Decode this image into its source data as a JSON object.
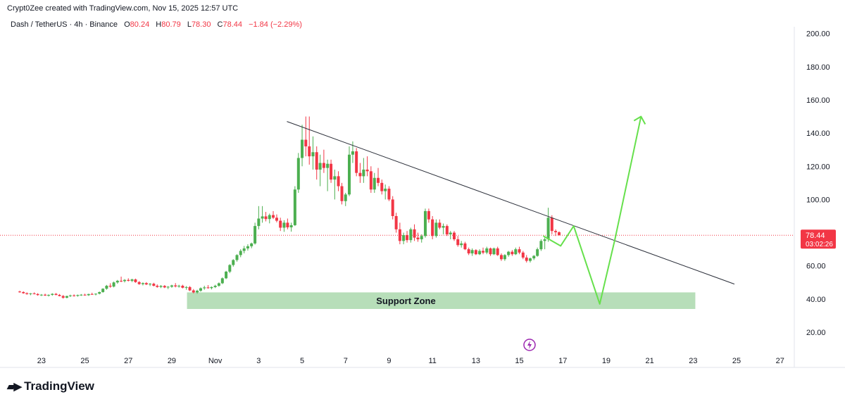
{
  "header": {
    "created_by": "Crypt0Zee created with TradingView.com, Nov 15, 2025 12:57 UTC"
  },
  "legend": {
    "symbol": "Dash / TetherUS · 4h · Binance",
    "o_label": "O",
    "o_value": "80.24",
    "h_label": "H",
    "h_value": "80.79",
    "l_label": "L",
    "l_value": "78.30",
    "c_label": "C",
    "c_value": "78.44",
    "change": "−1.84 (−2.29%)"
  },
  "price_badge": {
    "price": "78.44",
    "countdown": "03:02:26"
  },
  "brand": {
    "name": "TradingView"
  },
  "colors": {
    "up": "#4caf50",
    "down": "#f23645",
    "projection": "#66e04c",
    "zone": "#a5d6a7",
    "trendline": "#2a2e39"
  },
  "chart_data": {
    "type": "candlestick",
    "x_ticks": [
      "23",
      "25",
      "27",
      "29",
      "Nov",
      "3",
      "5",
      "7",
      "9",
      "11",
      "13",
      "15",
      "17",
      "19",
      "21",
      "23",
      "25",
      "27"
    ],
    "y_ticks": [
      "20.00",
      "40.00",
      "60.00",
      "80.00",
      "100.00",
      "120.00",
      "140.00",
      "160.00",
      "180.00",
      "200.00"
    ],
    "ylim": [
      10,
      210
    ],
    "x_range_days": [
      -9,
      27
    ],
    "last_price": 78.44,
    "support_zone": {
      "label": "Support Zone",
      "from_day": -1.3,
      "to_day": 22.1,
      "low": 34,
      "high": 44
    },
    "trendline": {
      "from": [
        3.3,
        147
      ],
      "to": [
        23.9,
        49
      ]
    },
    "projection_path": [
      [
        15.1,
        78
      ],
      [
        15.9,
        72
      ],
      [
        16.5,
        84
      ],
      [
        17.7,
        37
      ],
      [
        18.4,
        76
      ],
      [
        19.6,
        150
      ]
    ],
    "candles": [
      [
        -9.0,
        44.5,
        45.0,
        43.8,
        44.2
      ],
      [
        -8.83,
        44.2,
        44.6,
        43.2,
        43.5
      ],
      [
        -8.67,
        43.5,
        44.0,
        42.6,
        43.0
      ],
      [
        -8.5,
        43.0,
        43.6,
        42.3,
        43.4
      ],
      [
        -8.33,
        43.4,
        44.0,
        42.8,
        43.0
      ],
      [
        -8.17,
        43.0,
        43.5,
        42.0,
        42.4
      ],
      [
        -8.0,
        42.4,
        43.0,
        41.8,
        42.6
      ],
      [
        -7.83,
        42.6,
        43.2,
        41.9,
        42.1
      ],
      [
        -7.67,
        42.1,
        42.8,
        41.5,
        42.5
      ],
      [
        -7.5,
        42.5,
        43.5,
        42.0,
        43.1
      ],
      [
        -7.33,
        43.1,
        43.6,
        42.2,
        42.5
      ],
      [
        -7.17,
        42.5,
        43.0,
        41.6,
        41.8
      ],
      [
        -7.0,
        41.8,
        42.4,
        40.2,
        40.8
      ],
      [
        -6.83,
        40.8,
        42.0,
        40.4,
        41.8
      ],
      [
        -6.67,
        41.8,
        42.6,
        41.2,
        42.2
      ],
      [
        -6.5,
        42.2,
        42.8,
        41.5,
        41.9
      ],
      [
        -6.33,
        41.9,
        42.7,
        41.4,
        42.4
      ],
      [
        -6.17,
        42.4,
        43.0,
        41.9,
        42.6
      ],
      [
        -6.0,
        42.6,
        43.2,
        42.0,
        42.3
      ],
      [
        -5.83,
        42.3,
        43.2,
        41.9,
        43.0
      ],
      [
        -5.67,
        43.0,
        43.8,
        42.5,
        42.8
      ],
      [
        -5.5,
        42.8,
        43.4,
        42.2,
        43.2
      ],
      [
        -5.33,
        43.2,
        44.5,
        42.8,
        44.2
      ],
      [
        -5.17,
        44.2,
        46.5,
        43.8,
        46.2
      ],
      [
        -5.0,
        46.2,
        48.5,
        45.6,
        48.0
      ],
      [
        -4.83,
        48.0,
        49.5,
        46.8,
        47.5
      ],
      [
        -4.67,
        47.5,
        50.5,
        47.0,
        50.0
      ],
      [
        -4.5,
        50.0,
        51.5,
        49.2,
        51.0
      ],
      [
        -4.33,
        51.0,
        53.5,
        50.2,
        50.8
      ],
      [
        -4.17,
        50.8,
        52.0,
        50.0,
        51.5
      ],
      [
        -4.0,
        51.5,
        52.5,
        50.6,
        51.0
      ],
      [
        -3.83,
        51.0,
        52.2,
        50.2,
        51.8
      ],
      [
        -3.67,
        51.8,
        52.3,
        49.8,
        50.2
      ],
      [
        -3.5,
        50.2,
        50.8,
        48.6,
        49.0
      ],
      [
        -3.33,
        49.0,
        50.0,
        48.2,
        49.6
      ],
      [
        -3.17,
        49.6,
        50.2,
        48.4,
        48.8
      ],
      [
        -3.0,
        48.8,
        49.6,
        47.8,
        49.2
      ],
      [
        -2.83,
        49.2,
        49.8,
        47.6,
        48.0
      ],
      [
        -2.67,
        48.0,
        48.8,
        46.8,
        47.3
      ],
      [
        -2.5,
        47.3,
        48.4,
        46.6,
        47.9
      ],
      [
        -2.33,
        47.9,
        48.4,
        46.6,
        47.0
      ],
      [
        -2.17,
        47.0,
        47.8,
        46.0,
        47.4
      ],
      [
        -2.0,
        47.4,
        48.6,
        46.8,
        48.2
      ],
      [
        -1.83,
        48.2,
        49.6,
        47.0,
        47.6
      ],
      [
        -1.67,
        47.6,
        48.6,
        46.8,
        48.0
      ],
      [
        -1.5,
        48.0,
        48.6,
        46.4,
        46.8
      ],
      [
        -1.33,
        46.8,
        47.8,
        45.6,
        47.2
      ],
      [
        -1.17,
        47.2,
        47.8,
        44.8,
        45.2
      ],
      [
        -1.0,
        45.2,
        46.0,
        43.4,
        44.0
      ],
      [
        -0.83,
        44.0,
        45.6,
        43.2,
        45.0
      ],
      [
        -0.67,
        45.0,
        47.0,
        44.4,
        46.5
      ],
      [
        -0.5,
        46.5,
        48.0,
        45.6,
        47.0
      ],
      [
        -0.33,
        47.0,
        48.4,
        46.2,
        46.6
      ],
      [
        -0.17,
        46.6,
        47.6,
        45.8,
        47.2
      ],
      [
        0.0,
        47.2,
        48.6,
        46.6,
        48.0
      ],
      [
        0.17,
        48.0,
        50.0,
        47.4,
        49.5
      ],
      [
        0.33,
        49.5,
        53.0,
        49.0,
        52.5
      ],
      [
        0.5,
        52.5,
        57.0,
        52.0,
        56.5
      ],
      [
        0.67,
        56.5,
        61.0,
        55.6,
        60.5
      ],
      [
        0.83,
        60.5,
        64.0,
        59.5,
        63.5
      ],
      [
        1.0,
        63.5,
        67.0,
        62.5,
        66.5
      ],
      [
        1.17,
        66.5,
        70.0,
        65.2,
        69.0
      ],
      [
        1.33,
        69.0,
        72.0,
        67.5,
        70.5
      ],
      [
        1.5,
        70.5,
        73.0,
        69.2,
        71.8
      ],
      [
        1.67,
        71.8,
        74.0,
        70.6,
        73.5
      ],
      [
        1.83,
        73.5,
        86.0,
        72.8,
        84.0
      ],
      [
        2.0,
        84.0,
        96.0,
        82.0,
        88.5
      ],
      [
        2.17,
        88.5,
        96.0,
        86.0,
        89.8
      ],
      [
        2.33,
        89.8,
        92.5,
        86.8,
        88.2
      ],
      [
        2.5,
        88.2,
        91.5,
        85.6,
        90.6
      ],
      [
        2.67,
        90.6,
        93.0,
        88.2,
        89.0
      ],
      [
        2.83,
        89.0,
        91.0,
        86.2,
        87.2
      ],
      [
        3.0,
        87.2,
        89.0,
        81.0,
        83.0
      ],
      [
        3.17,
        83.0,
        87.5,
        80.5,
        86.0
      ],
      [
        3.33,
        86.0,
        88.5,
        82.0,
        83.2
      ],
      [
        3.5,
        83.2,
        86.0,
        80.6,
        84.5
      ],
      [
        3.67,
        84.5,
        108.0,
        84.0,
        106.0
      ],
      [
        3.83,
        106.0,
        128.0,
        104.0,
        125.0
      ],
      [
        4.0,
        125.0,
        145.0,
        120.0,
        136.0
      ],
      [
        4.17,
        136.0,
        150.0,
        126.0,
        132.0
      ],
      [
        4.33,
        132.0,
        150.0,
        121.0,
        126.0
      ],
      [
        4.5,
        126.0,
        138.0,
        118.0,
        128.5
      ],
      [
        4.67,
        128.5,
        132.0,
        112.0,
        118.0
      ],
      [
        4.83,
        118.0,
        127.0,
        108.0,
        122.0
      ],
      [
        5.0,
        122.0,
        130.0,
        116.0,
        119.0
      ],
      [
        5.17,
        119.0,
        124.0,
        105.0,
        121.5
      ],
      [
        5.33,
        121.5,
        124.0,
        110.0,
        112.0
      ],
      [
        5.5,
        112.0,
        118.0,
        100.0,
        114.0
      ],
      [
        5.67,
        114.0,
        117.0,
        105.0,
        108.0
      ],
      [
        5.83,
        108.0,
        110.0,
        97.0,
        99.0
      ],
      [
        6.0,
        99.0,
        104.0,
        96.0,
        103.0
      ],
      [
        6.17,
        103.0,
        132.0,
        102.0,
        127.0
      ],
      [
        6.33,
        127.0,
        135.0,
        122.0,
        129.0
      ],
      [
        6.5,
        129.0,
        131.0,
        114.0,
        116.0
      ],
      [
        6.67,
        116.0,
        122.0,
        110.0,
        114.0
      ],
      [
        6.83,
        114.0,
        125.0,
        110.0,
        118.0
      ],
      [
        7.0,
        118.0,
        126.0,
        114.0,
        117.0
      ],
      [
        7.17,
        117.0,
        120.0,
        104.0,
        106.0
      ],
      [
        7.33,
        106.0,
        116.0,
        104.0,
        113.0
      ],
      [
        7.5,
        113.0,
        119.0,
        108.0,
        110.0
      ],
      [
        7.67,
        110.0,
        112.0,
        103.0,
        105.0
      ],
      [
        7.83,
        105.0,
        109.0,
        100.0,
        106.5
      ],
      [
        8.0,
        106.5,
        108.0,
        99.0,
        100.0
      ],
      [
        8.17,
        100.0,
        102.0,
        88.0,
        90.0
      ],
      [
        8.33,
        90.0,
        92.0,
        80.0,
        82.0
      ],
      [
        8.5,
        82.0,
        86.0,
        73.0,
        75.0
      ],
      [
        8.67,
        75.0,
        80.0,
        73.0,
        78.5
      ],
      [
        8.83,
        78.5,
        81.0,
        74.0,
        75.5
      ],
      [
        9.0,
        75.5,
        83.0,
        74.0,
        82.0
      ],
      [
        9.17,
        82.0,
        85.0,
        75.0,
        77.0
      ],
      [
        9.33,
        77.0,
        80.0,
        74.5,
        76.0
      ],
      [
        9.5,
        76.0,
        79.0,
        74.0,
        78.0
      ],
      [
        9.67,
        78.0,
        94.5,
        77.0,
        93.0
      ],
      [
        9.83,
        93.0,
        94.5,
        86.0,
        88.0
      ],
      [
        10.0,
        88.0,
        90.0,
        76.0,
        78.0
      ],
      [
        10.17,
        78.0,
        88.0,
        77.0,
        86.0
      ],
      [
        10.33,
        86.0,
        88.0,
        82.0,
        83.0
      ],
      [
        10.5,
        83.0,
        85.5,
        79.0,
        84.0
      ],
      [
        10.67,
        84.0,
        85.0,
        78.0,
        79.0
      ],
      [
        10.83,
        79.0,
        81.0,
        76.0,
        80.0
      ],
      [
        11.0,
        80.0,
        81.0,
        75.0,
        76.0
      ],
      [
        11.17,
        76.0,
        78.0,
        71.5,
        72.5
      ],
      [
        11.33,
        72.5,
        75.0,
        71.0,
        73.5
      ],
      [
        11.5,
        73.5,
        74.5,
        69.5,
        70.0
      ],
      [
        11.67,
        70.0,
        71.0,
        66.5,
        67.5
      ],
      [
        11.83,
        67.5,
        70.5,
        66.0,
        69.5
      ],
      [
        12.0,
        69.5,
        70.0,
        66.5,
        67.0
      ],
      [
        12.17,
        67.0,
        70.0,
        66.5,
        69.0
      ],
      [
        12.33,
        69.0,
        71.0,
        67.0,
        68.0
      ],
      [
        12.5,
        68.0,
        71.5,
        67.0,
        70.5
      ],
      [
        12.67,
        70.5,
        71.0,
        66.0,
        67.0
      ],
      [
        12.83,
        67.0,
        71.0,
        66.5,
        70.5
      ],
      [
        13.0,
        70.5,
        71.5,
        66.0,
        66.5
      ],
      [
        13.17,
        66.5,
        67.5,
        63.0,
        64.0
      ],
      [
        13.33,
        64.0,
        67.0,
        63.0,
        66.5
      ],
      [
        13.5,
        66.5,
        69.0,
        65.5,
        68.5
      ],
      [
        13.67,
        68.5,
        69.5,
        66.0,
        67.0
      ],
      [
        13.83,
        67.0,
        71.0,
        66.5,
        70.0
      ],
      [
        14.0,
        70.0,
        71.5,
        67.0,
        68.0
      ],
      [
        14.17,
        68.0,
        69.0,
        64.0,
        65.0
      ],
      [
        14.33,
        65.0,
        66.5,
        62.0,
        63.0
      ],
      [
        14.5,
        63.0,
        65.0,
        62.0,
        64.5
      ],
      [
        14.67,
        64.5,
        66.5,
        63.5,
        66.0
      ],
      [
        14.83,
        66.0,
        71.0,
        65.5,
        70.0
      ],
      [
        15.0,
        70.0,
        76.0,
        69.0,
        75.0
      ],
      [
        15.17,
        75.0,
        77.0,
        70.0,
        76.0
      ],
      [
        15.33,
        76.0,
        95.0,
        74.5,
        89.0
      ],
      [
        15.5,
        89.0,
        90.5,
        79.0,
        81.0
      ],
      [
        15.67,
        81.0,
        82.0,
        78.0,
        80.24
      ],
      [
        15.83,
        80.24,
        80.79,
        78.3,
        78.44
      ]
    ]
  }
}
